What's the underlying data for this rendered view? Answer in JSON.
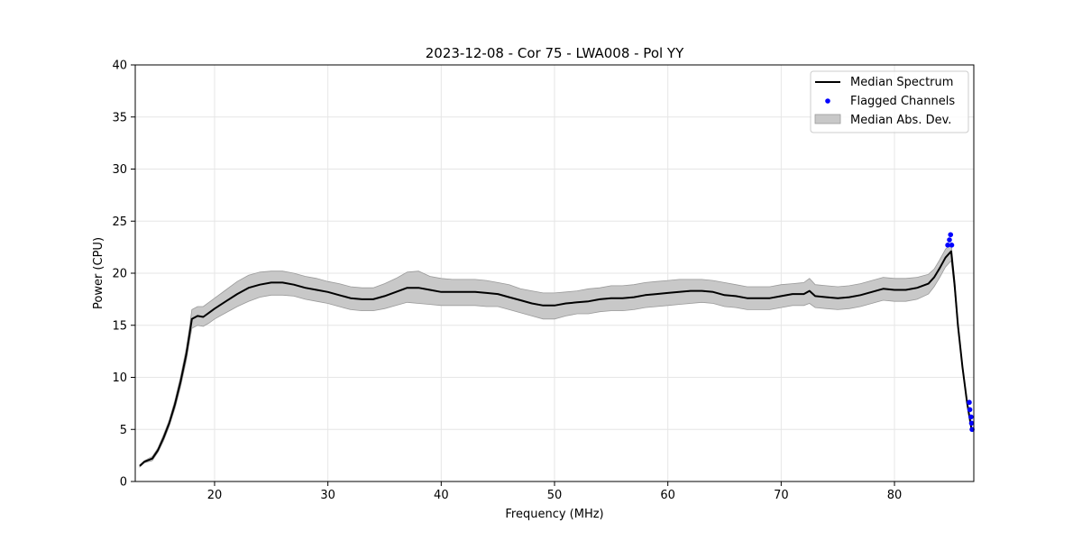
{
  "chart_data": {
    "type": "line",
    "title": "2023-12-08 - Cor 75 - LWA008 - Pol YY",
    "xlabel": "Frequency (MHz)",
    "ylabel": "Power (CPU)",
    "xlim": [
      13,
      87
    ],
    "ylim": [
      0,
      40
    ],
    "xticks": [
      20,
      30,
      40,
      50,
      60,
      70,
      80
    ],
    "yticks": [
      0,
      5,
      10,
      15,
      20,
      25,
      30,
      35,
      40
    ],
    "grid": true,
    "legend_position": "top-right",
    "colors": {
      "median": "#000000",
      "flagged": "#0000ff",
      "mad_fill": "#c8c8c8",
      "mad_edge": "#9a9a9a"
    },
    "series": [
      {
        "name": "Median Spectrum",
        "kind": "line",
        "x": [
          13.4,
          13.8,
          14.5,
          15.0,
          15.5,
          16.0,
          16.5,
          17.0,
          17.5,
          17.8,
          18.0,
          18.5,
          19.0,
          19.5,
          20.0,
          21.0,
          22.0,
          23.0,
          24.0,
          25.0,
          26.0,
          27.0,
          28.0,
          29.0,
          30.0,
          31.0,
          32.0,
          33.0,
          34.0,
          35.0,
          36.0,
          37.0,
          38.0,
          39.0,
          40.0,
          41.0,
          42.0,
          43.0,
          44.0,
          45.0,
          46.0,
          47.0,
          48.0,
          49.0,
          50.0,
          51.0,
          52.0,
          53.0,
          54.0,
          55.0,
          56.0,
          57.0,
          58.0,
          59.0,
          60.0,
          61.0,
          62.0,
          63.0,
          64.0,
          65.0,
          66.0,
          67.0,
          68.0,
          69.0,
          70.0,
          71.0,
          72.0,
          72.5,
          73.0,
          74.0,
          75.0,
          76.0,
          77.0,
          78.0,
          79.0,
          80.0,
          81.0,
          82.0,
          83.0,
          83.5,
          84.0,
          84.5,
          85.0,
          85.3,
          85.6,
          86.0,
          86.4,
          86.8
        ],
        "y": [
          1.5,
          1.9,
          2.2,
          3.0,
          4.2,
          5.6,
          7.4,
          9.6,
          12.2,
          14.2,
          15.6,
          15.9,
          15.8,
          16.2,
          16.6,
          17.3,
          18.0,
          18.6,
          18.9,
          19.1,
          19.1,
          18.9,
          18.6,
          18.4,
          18.2,
          17.9,
          17.6,
          17.5,
          17.5,
          17.8,
          18.2,
          18.6,
          18.6,
          18.4,
          18.2,
          18.2,
          18.2,
          18.2,
          18.1,
          18.0,
          17.7,
          17.4,
          17.1,
          16.9,
          16.9,
          17.1,
          17.2,
          17.3,
          17.5,
          17.6,
          17.6,
          17.7,
          17.9,
          18.0,
          18.1,
          18.2,
          18.3,
          18.3,
          18.2,
          17.9,
          17.8,
          17.6,
          17.6,
          17.6,
          17.8,
          18.0,
          18.0,
          18.3,
          17.8,
          17.7,
          17.6,
          17.7,
          17.9,
          18.2,
          18.5,
          18.4,
          18.4,
          18.6,
          19.0,
          19.6,
          20.5,
          21.5,
          22.1,
          19.0,
          15.0,
          11.0,
          7.6,
          5.0
        ]
      },
      {
        "name": "Flagged Channels",
        "kind": "scatter",
        "x": [
          84.7,
          84.85,
          84.95,
          85.05,
          86.6,
          86.65,
          86.75,
          86.8,
          86.85
        ],
        "y": [
          22.7,
          23.2,
          23.7,
          22.7,
          7.6,
          6.9,
          6.2,
          5.6,
          5.0
        ]
      },
      {
        "name": "Median Abs. Dev.",
        "kind": "band",
        "x": [
          13.4,
          13.8,
          14.5,
          15.0,
          15.5,
          16.0,
          16.5,
          17.0,
          17.5,
          17.8,
          18.0,
          18.5,
          19.0,
          19.5,
          20.0,
          21.0,
          22.0,
          23.0,
          24.0,
          25.0,
          26.0,
          27.0,
          28.0,
          29.0,
          30.0,
          31.0,
          32.0,
          33.0,
          34.0,
          35.0,
          36.0,
          37.0,
          38.0,
          39.0,
          40.0,
          41.0,
          42.0,
          43.0,
          44.0,
          45.0,
          46.0,
          47.0,
          48.0,
          49.0,
          50.0,
          51.0,
          52.0,
          53.0,
          54.0,
          55.0,
          56.0,
          57.0,
          58.0,
          59.0,
          60.0,
          61.0,
          62.0,
          63.0,
          64.0,
          65.0,
          66.0,
          67.0,
          68.0,
          69.0,
          70.0,
          71.0,
          72.0,
          72.5,
          73.0,
          74.0,
          75.0,
          76.0,
          77.0,
          78.0,
          79.0,
          80.0,
          81.0,
          82.0,
          83.0,
          83.5,
          84.0,
          84.5,
          85.0,
          85.3,
          85.6,
          86.0,
          86.4,
          86.8
        ],
        "upper": [
          1.6,
          2.0,
          2.4,
          3.2,
          4.5,
          5.9,
          7.8,
          10.1,
          12.8,
          14.9,
          16.5,
          16.8,
          16.8,
          17.2,
          17.6,
          18.4,
          19.2,
          19.8,
          20.1,
          20.2,
          20.2,
          20.0,
          19.7,
          19.5,
          19.2,
          19.0,
          18.7,
          18.6,
          18.6,
          19.0,
          19.5,
          20.1,
          20.2,
          19.7,
          19.5,
          19.4,
          19.4,
          19.4,
          19.3,
          19.1,
          18.9,
          18.5,
          18.3,
          18.1,
          18.1,
          18.2,
          18.3,
          18.5,
          18.6,
          18.8,
          18.8,
          18.9,
          19.1,
          19.2,
          19.3,
          19.4,
          19.4,
          19.4,
          19.3,
          19.1,
          18.9,
          18.7,
          18.7,
          18.7,
          18.9,
          19.0,
          19.1,
          19.5,
          18.9,
          18.8,
          18.7,
          18.8,
          19.0,
          19.3,
          19.6,
          19.5,
          19.5,
          19.6,
          19.9,
          20.4,
          21.3,
          22.3,
          22.9,
          19.5,
          15.3,
          11.2,
          7.7,
          5.1
        ],
        "lower": [
          1.4,
          1.8,
          2.0,
          2.8,
          3.9,
          5.3,
          7.0,
          9.1,
          11.6,
          13.5,
          14.7,
          15.0,
          14.9,
          15.2,
          15.6,
          16.2,
          16.8,
          17.3,
          17.7,
          17.9,
          17.9,
          17.8,
          17.5,
          17.3,
          17.1,
          16.8,
          16.5,
          16.4,
          16.4,
          16.6,
          16.9,
          17.2,
          17.1,
          17.0,
          16.9,
          16.9,
          16.9,
          16.9,
          16.8,
          16.8,
          16.5,
          16.2,
          15.9,
          15.6,
          15.6,
          15.9,
          16.1,
          16.1,
          16.3,
          16.4,
          16.4,
          16.5,
          16.7,
          16.8,
          16.9,
          17.0,
          17.1,
          17.2,
          17.1,
          16.8,
          16.7,
          16.5,
          16.5,
          16.5,
          16.7,
          16.9,
          16.9,
          17.1,
          16.7,
          16.6,
          16.5,
          16.6,
          16.8,
          17.1,
          17.4,
          17.3,
          17.3,
          17.5,
          18.0,
          18.7,
          19.6,
          20.6,
          21.2,
          18.4,
          14.7,
          10.8,
          7.4,
          4.9
        ]
      }
    ]
  }
}
